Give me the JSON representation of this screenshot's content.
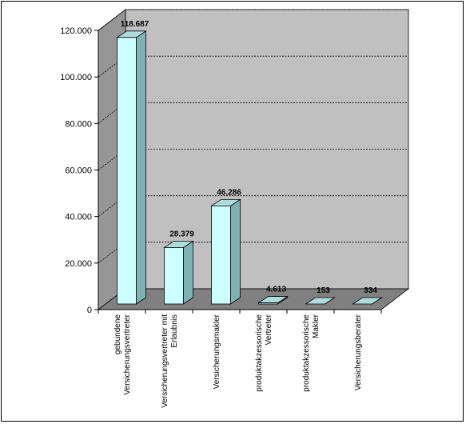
{
  "chart_data": {
    "type": "bar",
    "title": "",
    "xlabel": "",
    "ylabel": "",
    "ylim": [
      0,
      120000
    ],
    "y_ticks": [
      "0",
      "20.000",
      "40.000",
      "60.000",
      "80.000",
      "100.000",
      "120.000"
    ],
    "grid": true,
    "categories": [
      [
        "gebundene",
        "Versicherungsvertreter"
      ],
      [
        "Versicherungsvertreter mit",
        "Erlaubnis"
      ],
      [
        "Versicherungsmakler"
      ],
      [
        "produktakzessorische",
        "Vertreter"
      ],
      [
        "produktakzessorische",
        "Makler"
      ],
      [
        "Versicherungsberater"
      ]
    ],
    "values": [
      118687,
      28379,
      46286,
      4613,
      153,
      334
    ],
    "value_labels": [
      "118.687",
      "28.379",
      "46.286",
      "4.613",
      "153",
      "334"
    ],
    "colors": {
      "bar_front": "#ccffff",
      "bar_side": "#7fb3b3",
      "bar_top": "#b0dcdc",
      "wall": "#c0c0c0",
      "floor": "#808080",
      "side_wall": "#969696"
    }
  }
}
